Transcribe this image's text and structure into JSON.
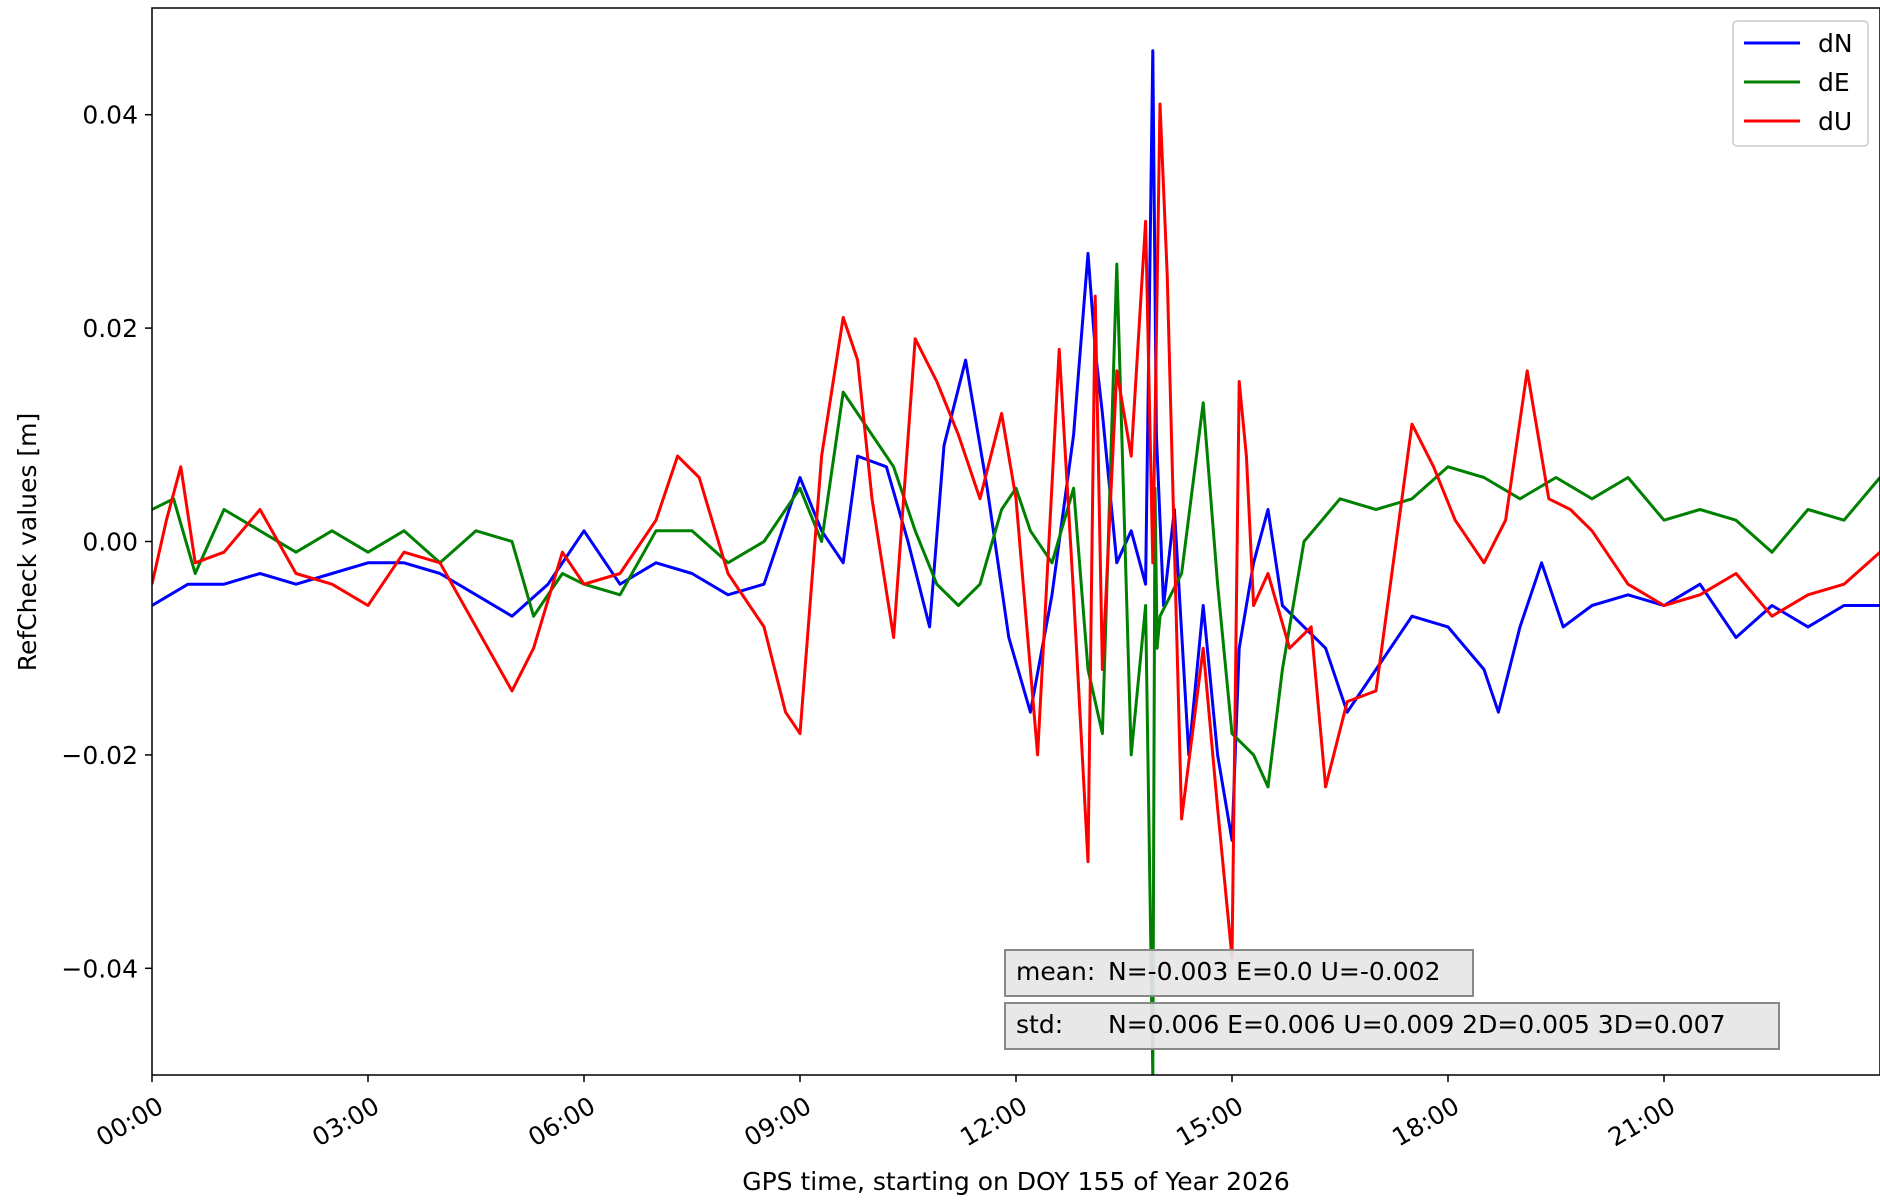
{
  "chart_data": {
    "type": "line",
    "xlabel": "GPS time, starting on DOY 155 of Year 2026",
    "ylabel": "RefCheck values [m]",
    "x_unit": "hours",
    "xlim": [
      0,
      24
    ],
    "ylim": [
      -0.05,
      0.05
    ],
    "x_ticks": [
      {
        "value": 0,
        "label": "00:00"
      },
      {
        "value": 3,
        "label": "03:00"
      },
      {
        "value": 6,
        "label": "06:00"
      },
      {
        "value": 9,
        "label": "09:00"
      },
      {
        "value": 12,
        "label": "12:00"
      },
      {
        "value": 15,
        "label": "15:00"
      },
      {
        "value": 18,
        "label": "18:00"
      },
      {
        "value": 21,
        "label": "21:00"
      }
    ],
    "y_ticks": [
      {
        "value": 0.04,
        "label": "0.04"
      },
      {
        "value": 0.02,
        "label": "0.02"
      },
      {
        "value": 0.0,
        "label": "0.00"
      },
      {
        "value": -0.02,
        "label": "−0.02"
      },
      {
        "value": -0.04,
        "label": "−0.04"
      }
    ],
    "grid": false,
    "legend_position": "top-right",
    "series": [
      {
        "name": "dN",
        "color": "#0000ff",
        "x": [
          0,
          0.5,
          1,
          1.5,
          2,
          2.5,
          3,
          3.5,
          4,
          4.5,
          5,
          5.5,
          6,
          6.5,
          7,
          7.5,
          8,
          8.5,
          9,
          9.3,
          9.6,
          9.8,
          10.2,
          10.5,
          10.8,
          11,
          11.3,
          11.6,
          11.9,
          12.2,
          12.5,
          12.8,
          13.0,
          13.1,
          13.2,
          13.4,
          13.6,
          13.8,
          13.9,
          13.95,
          14.05,
          14.2,
          14.4,
          14.6,
          14.8,
          15.0,
          15.1,
          15.3,
          15.5,
          15.7,
          16.0,
          16.3,
          16.6,
          17.0,
          17.5,
          18.0,
          18.5,
          18.7,
          19.0,
          19.3,
          19.6,
          20.0,
          20.5,
          21.0,
          21.5,
          22.0,
          22.5,
          23.0,
          23.5,
          24
        ],
        "y": [
          -0.006,
          -0.004,
          -0.004,
          -0.003,
          -0.004,
          -0.003,
          -0.002,
          -0.002,
          -0.003,
          -0.005,
          -0.007,
          -0.004,
          0.001,
          -0.004,
          -0.002,
          -0.003,
          -0.005,
          -0.004,
          0.006,
          0.001,
          -0.002,
          0.008,
          0.007,
          0.0,
          -0.008,
          0.009,
          0.017,
          0.005,
          -0.009,
          -0.016,
          -0.005,
          0.01,
          0.027,
          0.018,
          0.012,
          -0.002,
          0.001,
          -0.004,
          0.046,
          0.01,
          -0.006,
          0.003,
          -0.02,
          -0.006,
          -0.02,
          -0.028,
          -0.01,
          -0.002,
          0.003,
          -0.006,
          -0.008,
          -0.01,
          -0.016,
          -0.012,
          -0.007,
          -0.008,
          -0.012,
          -0.016,
          -0.008,
          -0.002,
          -0.008,
          -0.006,
          -0.005,
          -0.006,
          -0.004,
          -0.009,
          -0.006,
          -0.008,
          -0.006,
          -0.006
        ]
      },
      {
        "name": "dE",
        "color": "#008000",
        "x": [
          0,
          0.3,
          0.6,
          1,
          1.5,
          2,
          2.5,
          3,
          3.5,
          4,
          4.5,
          5,
          5.3,
          5.7,
          6,
          6.5,
          7,
          7.5,
          8,
          8.5,
          9,
          9.3,
          9.6,
          10,
          10.3,
          10.6,
          10.9,
          11.2,
          11.5,
          11.8,
          12.0,
          12.2,
          12.5,
          12.8,
          13.0,
          13.2,
          13.4,
          13.6,
          13.8,
          13.9,
          13.93,
          13.96,
          14.0,
          14.3,
          14.6,
          14.8,
          15.0,
          15.3,
          15.5,
          15.7,
          16.0,
          16.5,
          17.0,
          17.5,
          18.0,
          18.5,
          19.0,
          19.5,
          20.0,
          20.5,
          21.0,
          21.5,
          22.0,
          22.5,
          23.0,
          23.5,
          24
        ],
        "y": [
          0.003,
          0.004,
          -0.003,
          0.003,
          0.001,
          -0.001,
          0.001,
          -0.001,
          0.001,
          -0.002,
          0.001,
          0.0,
          -0.007,
          -0.003,
          -0.004,
          -0.005,
          0.001,
          0.001,
          -0.002,
          0.0,
          0.005,
          0.0,
          0.014,
          0.01,
          0.007,
          0.001,
          -0.004,
          -0.006,
          -0.004,
          0.003,
          0.005,
          0.001,
          -0.002,
          0.005,
          -0.012,
          -0.018,
          0.026,
          -0.02,
          -0.006,
          -0.05,
          0.005,
          -0.01,
          -0.007,
          -0.003,
          0.013,
          -0.004,
          -0.018,
          -0.02,
          -0.023,
          -0.012,
          0.0,
          0.004,
          0.003,
          0.004,
          0.007,
          0.006,
          0.004,
          0.006,
          0.004,
          0.006,
          0.002,
          0.003,
          0.002,
          -0.001,
          0.003,
          0.002,
          0.006
        ]
      },
      {
        "name": "dU",
        "color": "#ff0000",
        "x": [
          0,
          0.2,
          0.4,
          0.6,
          1,
          1.5,
          2,
          2.5,
          3,
          3.5,
          4,
          4.5,
          5,
          5.3,
          5.7,
          6,
          6.5,
          7,
          7.3,
          7.6,
          8,
          8.5,
          8.8,
          9.0,
          9.3,
          9.6,
          9.8,
          10.0,
          10.3,
          10.6,
          10.9,
          11.2,
          11.5,
          11.8,
          12.0,
          12.3,
          12.6,
          12.8,
          13.0,
          13.1,
          13.2,
          13.4,
          13.6,
          13.8,
          13.9,
          14.0,
          14.1,
          14.3,
          14.6,
          14.8,
          15.0,
          15.1,
          15.2,
          15.3,
          15.5,
          15.8,
          16.1,
          16.3,
          16.6,
          17.0,
          17.5,
          17.8,
          18.1,
          18.5,
          18.8,
          19.1,
          19.4,
          19.7,
          20.0,
          20.5,
          21.0,
          21.5,
          22.0,
          22.5,
          23.0,
          23.5,
          24
        ],
        "y": [
          -0.004,
          0.002,
          0.007,
          -0.002,
          -0.001,
          0.003,
          -0.003,
          -0.004,
          -0.006,
          -0.001,
          -0.002,
          -0.008,
          -0.014,
          -0.01,
          -0.001,
          -0.004,
          -0.003,
          0.002,
          0.008,
          0.006,
          -0.003,
          -0.008,
          -0.016,
          -0.018,
          0.008,
          0.021,
          0.017,
          0.004,
          -0.009,
          0.019,
          0.015,
          0.01,
          0.004,
          0.012,
          0.004,
          -0.02,
          0.018,
          -0.005,
          -0.03,
          0.023,
          -0.012,
          0.016,
          0.008,
          0.03,
          -0.002,
          0.041,
          0.025,
          -0.026,
          -0.01,
          -0.025,
          -0.039,
          0.015,
          0.008,
          -0.006,
          -0.003,
          -0.01,
          -0.008,
          -0.023,
          -0.015,
          -0.014,
          0.011,
          0.007,
          0.002,
          -0.002,
          0.002,
          0.016,
          0.004,
          0.003,
          0.001,
          -0.004,
          -0.006,
          -0.005,
          -0.003,
          -0.007,
          -0.005,
          -0.004,
          -0.001
        ]
      }
    ],
    "annotations": [
      {
        "label": "mean:",
        "value": "N=-0.003 E=0.0 U=-0.002"
      },
      {
        "label": "std:",
        "value": "N=0.006 E=0.006 U=0.009 2D=0.005 3D=0.007"
      }
    ]
  }
}
